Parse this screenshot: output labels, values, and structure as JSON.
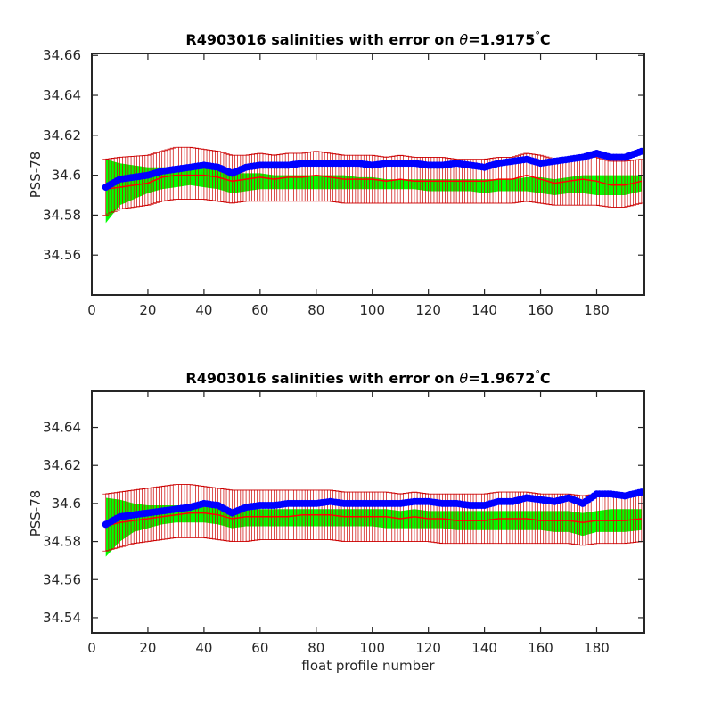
{
  "chart_data": [
    {
      "type": "line",
      "title_prefix": "R4903016 salinities with error on ",
      "title_symbol": "θ",
      "title_suffix": "=1.9175",
      "title_degree": "°",
      "title_unit": "C",
      "xlabel": "",
      "ylabel": "PSS-78",
      "xlim": [
        0,
        197
      ],
      "ylim": [
        34.54,
        34.661
      ],
      "xticks": [
        0,
        20,
        40,
        60,
        80,
        100,
        120,
        140,
        160,
        180
      ],
      "yticks": [
        34.56,
        34.58,
        34.6,
        34.62,
        34.64,
        34.66
      ],
      "ytick_labels": [
        "34.56",
        "34.58",
        "34.6",
        "34.62",
        "34.64",
        "34.66"
      ],
      "grid": false,
      "colors": {
        "float": "#0000ff",
        "mapped": "#ff0000",
        "envelope": "#00ff00",
        "error_bar": "#cc0000"
      },
      "series": [
        {
          "role": "float_salinity",
          "x": [
            5,
            10,
            20,
            25,
            30,
            35,
            40,
            45,
            50,
            55,
            60,
            65,
            70,
            75,
            80,
            85,
            90,
            95,
            100,
            105,
            110,
            115,
            120,
            125,
            130,
            135,
            140,
            145,
            150,
            155,
            160,
            165,
            170,
            175,
            180,
            185,
            190,
            196
          ],
          "y": [
            34.594,
            34.598,
            34.6,
            34.602,
            34.603,
            34.604,
            34.605,
            34.604,
            34.601,
            34.604,
            34.605,
            34.605,
            34.605,
            34.606,
            34.606,
            34.606,
            34.606,
            34.606,
            34.605,
            34.606,
            34.606,
            34.606,
            34.605,
            34.605,
            34.606,
            34.605,
            34.604,
            34.606,
            34.607,
            34.608,
            34.606,
            34.607,
            34.608,
            34.609,
            34.611,
            34.609,
            34.609,
            34.612
          ]
        },
        {
          "role": "mapped_salinity",
          "x": [
            5,
            10,
            20,
            25,
            30,
            35,
            40,
            45,
            50,
            55,
            60,
            65,
            70,
            75,
            80,
            85,
            90,
            95,
            100,
            105,
            110,
            115,
            120,
            125,
            130,
            135,
            140,
            145,
            150,
            155,
            160,
            165,
            170,
            175,
            180,
            185,
            190,
            196
          ],
          "y": [
            34.593,
            34.594,
            34.596,
            34.599,
            34.6,
            34.6,
            34.6,
            34.599,
            34.597,
            34.598,
            34.599,
            34.598,
            34.599,
            34.599,
            34.6,
            34.599,
            34.598,
            34.598,
            34.598,
            34.597,
            34.598,
            34.597,
            34.597,
            34.597,
            34.597,
            34.597,
            34.597,
            34.598,
            34.598,
            34.6,
            34.598,
            34.596,
            34.597,
            34.598,
            34.597,
            34.595,
            34.595,
            34.597
          ]
        },
        {
          "role": "error_envelope",
          "x": [
            5,
            10,
            20,
            25,
            30,
            35,
            40,
            45,
            50,
            55,
            60,
            65,
            70,
            75,
            80,
            85,
            90,
            95,
            100,
            105,
            110,
            115,
            120,
            125,
            130,
            135,
            140,
            145,
            150,
            155,
            160,
            165,
            170,
            175,
            180,
            185,
            190,
            196
          ],
          "lower": [
            34.576,
            34.585,
            34.591,
            34.593,
            34.594,
            34.595,
            34.594,
            34.593,
            34.591,
            34.592,
            34.593,
            34.593,
            34.593,
            34.593,
            34.593,
            34.593,
            34.593,
            34.593,
            34.593,
            34.593,
            34.593,
            34.593,
            34.592,
            34.592,
            34.592,
            34.592,
            34.591,
            34.592,
            34.592,
            34.592,
            34.591,
            34.59,
            34.591,
            34.591,
            34.59,
            34.59,
            34.59,
            34.592
          ],
          "upper": [
            34.608,
            34.606,
            34.604,
            34.604,
            34.604,
            34.604,
            34.604,
            34.603,
            34.601,
            34.601,
            34.601,
            34.6,
            34.6,
            34.6,
            34.6,
            34.6,
            34.6,
            34.599,
            34.599,
            34.598,
            34.598,
            34.598,
            34.598,
            34.598,
            34.598,
            34.598,
            34.598,
            34.598,
            34.598,
            34.599,
            34.599,
            34.598,
            34.599,
            34.6,
            34.6,
            34.6,
            34.6,
            34.6
          ]
        },
        {
          "role": "error_bars",
          "x": [
            5,
            10,
            20,
            25,
            30,
            35,
            40,
            45,
            50,
            55,
            60,
            65,
            70,
            75,
            80,
            85,
            90,
            95,
            100,
            105,
            110,
            115,
            120,
            125,
            130,
            135,
            140,
            145,
            150,
            155,
            160,
            165,
            170,
            175,
            180,
            185,
            190,
            196
          ],
          "lower": [
            34.58,
            34.583,
            34.585,
            34.587,
            34.588,
            34.588,
            34.588,
            34.587,
            34.586,
            34.587,
            34.587,
            34.587,
            34.587,
            34.587,
            34.587,
            34.587,
            34.586,
            34.586,
            34.586,
            34.586,
            34.586,
            34.586,
            34.586,
            34.586,
            34.586,
            34.586,
            34.586,
            34.586,
            34.586,
            34.587,
            34.586,
            34.585,
            34.585,
            34.585,
            34.585,
            34.584,
            34.584,
            34.586
          ],
          "upper": [
            34.608,
            34.609,
            34.61,
            34.612,
            34.614,
            34.614,
            34.613,
            34.612,
            34.61,
            34.61,
            34.611,
            34.61,
            34.611,
            34.611,
            34.612,
            34.611,
            34.61,
            34.61,
            34.61,
            34.609,
            34.61,
            34.609,
            34.609,
            34.609,
            34.608,
            34.608,
            34.608,
            34.609,
            34.609,
            34.611,
            34.61,
            34.608,
            34.609,
            34.61,
            34.609,
            34.607,
            34.607,
            34.608
          ]
        }
      ]
    },
    {
      "type": "line",
      "title_prefix": "R4903016 salinities with error on ",
      "title_symbol": "θ",
      "title_suffix": "=1.9672",
      "title_degree": "°",
      "title_unit": "C",
      "xlabel": "float profile number",
      "ylabel": "PSS-78",
      "xlim": [
        0,
        197
      ],
      "ylim": [
        34.532,
        34.659
      ],
      "xticks": [
        0,
        20,
        40,
        60,
        80,
        100,
        120,
        140,
        160,
        180
      ],
      "yticks": [
        34.54,
        34.56,
        34.58,
        34.6,
        34.62,
        34.64
      ],
      "ytick_labels": [
        "34.54",
        "34.56",
        "34.58",
        "34.6",
        "34.62",
        "34.64"
      ],
      "grid": false,
      "colors": {
        "float": "#0000ff",
        "mapped": "#ff0000",
        "envelope": "#00ff00",
        "error_bar": "#cc0000"
      },
      "series": [
        {
          "role": "float_salinity",
          "x": [
            5,
            10,
            15,
            20,
            25,
            30,
            35,
            40,
            45,
            50,
            55,
            60,
            65,
            70,
            75,
            80,
            85,
            90,
            95,
            100,
            105,
            110,
            115,
            120,
            125,
            130,
            135,
            140,
            145,
            150,
            155,
            160,
            165,
            170,
            175,
            180,
            185,
            190,
            196
          ],
          "y": [
            34.589,
            34.593,
            34.594,
            34.595,
            34.596,
            34.597,
            34.598,
            34.6,
            34.599,
            34.595,
            34.598,
            34.599,
            34.599,
            34.6,
            34.6,
            34.6,
            34.601,
            34.6,
            34.6,
            34.6,
            34.6,
            34.6,
            34.601,
            34.601,
            34.6,
            34.6,
            34.599,
            34.599,
            34.601,
            34.601,
            34.603,
            34.602,
            34.601,
            34.603,
            34.6,
            34.605,
            34.605,
            34.604,
            34.606
          ]
        },
        {
          "role": "mapped_salinity",
          "x": [
            5,
            10,
            15,
            20,
            25,
            30,
            35,
            40,
            45,
            50,
            55,
            60,
            65,
            70,
            75,
            80,
            85,
            90,
            95,
            100,
            105,
            110,
            115,
            120,
            125,
            130,
            135,
            140,
            145,
            150,
            155,
            160,
            165,
            170,
            175,
            180,
            185,
            190,
            196
          ],
          "y": [
            34.588,
            34.59,
            34.591,
            34.592,
            34.593,
            34.594,
            34.595,
            34.595,
            34.594,
            34.592,
            34.593,
            34.593,
            34.593,
            34.593,
            34.594,
            34.594,
            34.594,
            34.593,
            34.593,
            34.593,
            34.593,
            34.592,
            34.593,
            34.592,
            34.592,
            34.591,
            34.591,
            34.591,
            34.592,
            34.592,
            34.592,
            34.591,
            34.591,
            34.591,
            34.59,
            34.591,
            34.591,
            34.591,
            34.592
          ]
        },
        {
          "role": "error_envelope",
          "x": [
            5,
            10,
            15,
            20,
            25,
            30,
            35,
            40,
            45,
            50,
            55,
            60,
            65,
            70,
            75,
            80,
            85,
            90,
            95,
            100,
            105,
            110,
            115,
            120,
            125,
            130,
            135,
            140,
            145,
            150,
            155,
            160,
            165,
            170,
            175,
            180,
            185,
            190,
            196
          ],
          "lower": [
            34.572,
            34.58,
            34.585,
            34.587,
            34.589,
            34.59,
            34.59,
            34.59,
            34.589,
            34.587,
            34.588,
            34.588,
            34.588,
            34.588,
            34.588,
            34.588,
            34.588,
            34.588,
            34.588,
            34.588,
            34.587,
            34.587,
            34.587,
            34.587,
            34.587,
            34.586,
            34.586,
            34.586,
            34.586,
            34.586,
            34.586,
            34.586,
            34.585,
            34.585,
            34.583,
            34.585,
            34.585,
            34.585,
            34.586
          ],
          "upper": [
            34.603,
            34.602,
            34.6,
            34.599,
            34.599,
            34.599,
            34.599,
            34.599,
            34.598,
            34.597,
            34.597,
            34.597,
            34.597,
            34.597,
            34.597,
            34.597,
            34.597,
            34.597,
            34.597,
            34.597,
            34.597,
            34.596,
            34.597,
            34.596,
            34.596,
            34.596,
            34.596,
            34.596,
            34.596,
            34.596,
            34.596,
            34.596,
            34.596,
            34.596,
            34.595,
            34.596,
            34.597,
            34.597,
            34.597
          ]
        },
        {
          "role": "error_bars",
          "x": [
            5,
            10,
            15,
            20,
            25,
            30,
            35,
            40,
            45,
            50,
            55,
            60,
            65,
            70,
            75,
            80,
            85,
            90,
            95,
            100,
            105,
            110,
            115,
            120,
            125,
            130,
            135,
            140,
            145,
            150,
            155,
            160,
            165,
            170,
            175,
            180,
            185,
            190,
            196
          ],
          "lower": [
            34.575,
            34.577,
            34.579,
            34.58,
            34.581,
            34.582,
            34.582,
            34.582,
            34.581,
            34.58,
            34.58,
            34.581,
            34.581,
            34.581,
            34.581,
            34.581,
            34.581,
            34.58,
            34.58,
            34.58,
            34.58,
            34.58,
            34.58,
            34.58,
            34.579,
            34.579,
            34.579,
            34.579,
            34.579,
            34.579,
            34.579,
            34.579,
            34.579,
            34.579,
            34.578,
            34.579,
            34.579,
            34.579,
            34.58
          ],
          "upper": [
            34.605,
            34.606,
            34.607,
            34.608,
            34.609,
            34.61,
            34.61,
            34.609,
            34.608,
            34.607,
            34.607,
            34.607,
            34.607,
            34.607,
            34.607,
            34.607,
            34.607,
            34.606,
            34.606,
            34.606,
            34.606,
            34.605,
            34.606,
            34.605,
            34.605,
            34.605,
            34.605,
            34.605,
            34.606,
            34.606,
            34.606,
            34.605,
            34.605,
            34.605,
            34.604,
            34.605,
            34.605,
            34.605,
            34.606
          ]
        }
      ]
    }
  ]
}
